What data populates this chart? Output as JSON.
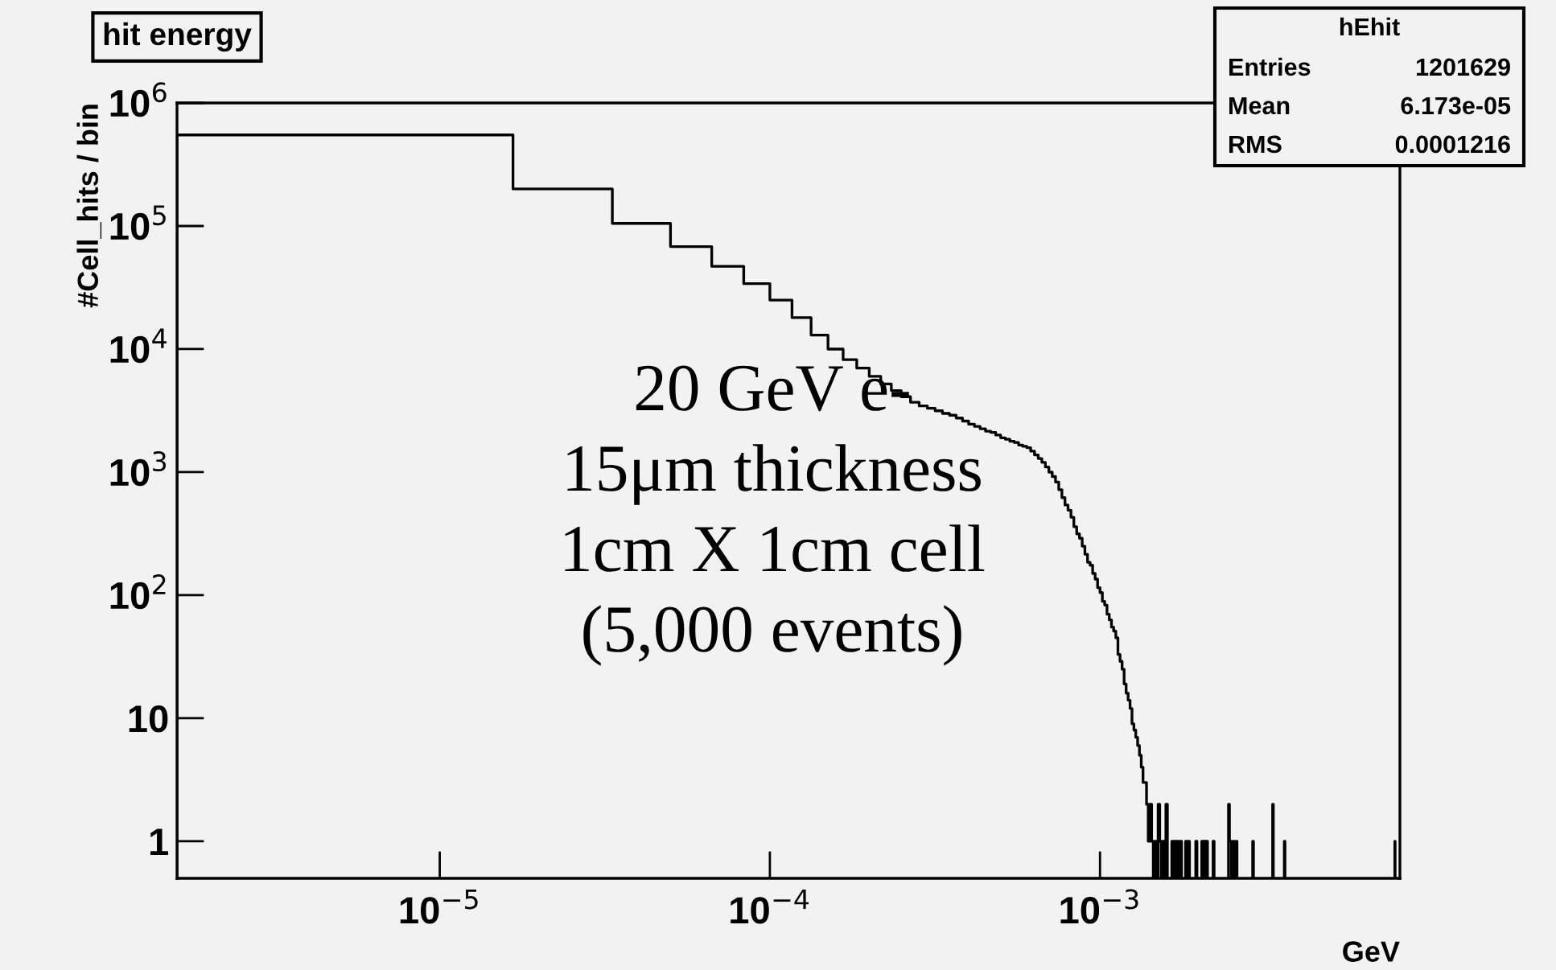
{
  "chart_data": {
    "type": "histogram",
    "title": "hit energy",
    "xlabel": "GeV",
    "ylabel": "#Cell_hits / bin",
    "log": "xy",
    "color": "#000000",
    "grid": false,
    "xlim": [
      1.6e-06,
      0.0081
    ],
    "ylim": [
      0.5,
      1000000
    ],
    "xticks": [
      {
        "value": 1e-05,
        "label": "10$^{−5}$"
      },
      {
        "value": 0.0001,
        "label": "10$^{−4}$"
      },
      {
        "value": 0.001,
        "label": "10$^{−3}$"
      }
    ],
    "yticks": [
      1,
      10,
      {
        "value": 100,
        "label": "10$^{2}$"
      },
      {
        "value": 1000,
        "label": "10$^{3}$"
      },
      {
        "value": 10000,
        "label": "10$^{4}$"
      },
      {
        "value": 100000,
        "label": "10$^{5}$"
      },
      {
        "value": 1000000,
        "label": "10$^{6}$"
      }
    ],
    "annotations": [
      "hEhit",
      "Entries",
      "1201629",
      "Mean",
      "6.173e-05",
      "RMS",
      "0.0001216",
      "20 GeV e-",
      "15μm thickness",
      "1cm X 1cm cell",
      "(5,000 events)"
    ],
    "bins": [
      1.6e-06,
      1.667e-05,
      3.333e-05,
      5e-05,
      6.667e-05,
      8.333e-05,
      0.0001,
      0.0001167,
      0.0001333,
      0.00015,
      0.0001667,
      0.0001833,
      0.0002,
      0.0002167,
      0.0002333,
      0.00025,
      0.0002667,
      0.0002833,
      0.0003,
      0.0003167,
      0.0003333,
      0.00035,
      0.0003667,
      0.0003833,
      0.0004,
      0.0004167,
      0.0004333,
      0.00045,
      0.0004667,
      0.0004833,
      0.0005,
      0.0005167,
      0.0005333,
      0.00055,
      0.0005667,
      0.0005833,
      0.0006,
      0.0006167,
      0.0006333,
      0.00065,
      0.0006667,
      0.0006833,
      0.0007,
      0.0007167,
      0.0007333,
      0.00075,
      0.0007667,
      0.0007833,
      0.0008,
      0.0008167,
      0.0008333,
      0.00085,
      0.0008667,
      0.0008833,
      0.0009,
      0.0009167,
      0.0009333,
      0.00095,
      0.0009667,
      0.0009833,
      0.001,
      0.0010167,
      0.0010333,
      0.00105,
      0.0010667,
      0.0010833,
      0.0011,
      0.0011167,
      0.0011333,
      0.00115,
      0.0011667,
      0.0011833,
      0.0012,
      0.0012167,
      0.0012333,
      0.00125,
      0.0012667,
      0.0012833,
      0.0013,
      0.0013167,
      0.0013333,
      0.00135,
      0.0013667,
      0.0013833,
      0.0014,
      0.0014167,
      0.0014333,
      0.00145,
      0.0014667,
      0.0014833,
      0.0015,
      0.0015167,
      0.0015333,
      0.00155,
      0.0015667,
      0.0015833,
      0.0016,
      0.00165,
      0.0016667,
      0.0016833,
      0.0017,
      0.0017167,
      0.0017333,
      0.00175,
      0.0017667,
      0.0018167,
      0.0018333,
      0.00185,
      0.0018667,
      0.00195,
      0.0019667,
      0.0020333,
      0.00205,
      0.0020667,
      0.0020833,
      0.0021,
      0.0021167,
      0.0022,
      0.0022167,
      0.00245,
      0.0024667,
      0.0024833,
      0.0025,
      0.0025333,
      0.00255,
      0.0025833,
      0.0026,
      0.0029,
      0.0029167,
      0.0033333,
      0.00335,
      0.0036167,
      0.0036333,
      0.0078167,
      0.0078333,
      0.008
    ],
    "values": [
      550000,
      200000,
      105000,
      68000,
      47000,
      34000,
      25000,
      18000,
      13000,
      10000,
      8200,
      7000,
      6000,
      5200,
      4600,
      4100,
      3700,
      3450,
      3300,
      3150,
      3000,
      2900,
      2750,
      2600,
      2450,
      2350,
      2250,
      2150,
      2100,
      2000,
      1900,
      1850,
      1780,
      1740,
      1660,
      1620,
      1580,
      1480,
      1380,
      1290,
      1200,
      1100,
      1000,
      920,
      830,
      720,
      620,
      540,
      490,
      430,
      360,
      315,
      290,
      250,
      215,
      185,
      175,
      150,
      135,
      115,
      105,
      89,
      83,
      70,
      63,
      55,
      51,
      45,
      33,
      29,
      25,
      19,
      16,
      14,
      12,
      9,
      8,
      7,
      6,
      5,
      4,
      3,
      3,
      2,
      1,
      2,
      1,
      null,
      1,
      null,
      2,
      1,
      null,
      1,
      null,
      2,
      null,
      1,
      null,
      1,
      null,
      1,
      null,
      1,
      null,
      1,
      null,
      1,
      null,
      1,
      null,
      1,
      null,
      1,
      null,
      1,
      null,
      1,
      null,
      2,
      1,
      1,
      null,
      1,
      null,
      1,
      null,
      1,
      null,
      2,
      null,
      1,
      null,
      1,
      null
    ]
  }
}
